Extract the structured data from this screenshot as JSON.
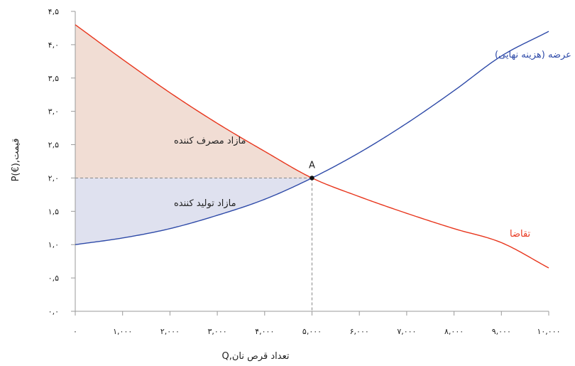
{
  "chart_data": {
    "type": "line",
    "title": "",
    "xlabel": "Q,تعداد قرص نان",
    "ylabel": "P(€),قیمت",
    "xlim": [
      0,
      10000
    ],
    "ylim": [
      0,
      4.5
    ],
    "x_ticks": [
      0,
      1000,
      2000,
      3000,
      4000,
      5000,
      6000,
      7000,
      8000,
      9000,
      10000
    ],
    "x_tick_labels": [
      "۰",
      "۱,۰۰۰",
      "۲,۰۰۰",
      "۳,۰۰۰",
      "۴,۰۰۰",
      "۵,۰۰۰",
      "۶,۰۰۰",
      "۷,۰۰۰",
      "۸,۰۰۰",
      "۹,۰۰۰",
      "۱۰,۰۰۰"
    ],
    "y_ticks": [
      0,
      0.5,
      1,
      1.5,
      2,
      2.5,
      3,
      3.5,
      4,
      4.5
    ],
    "y_tick_labels": [
      "۰,۰",
      "۰,۵",
      "۱,۰",
      "۱,۵",
      "۲,۰",
      "۲,۵",
      "۳,۰",
      "۳,۵",
      "۴,۰",
      "۴,۵"
    ],
    "series": [
      {
        "name": "تقاضا",
        "color": "#e8361d",
        "x": [
          0,
          1000,
          2000,
          3000,
          4000,
          5000,
          6000,
          7000,
          8000,
          9000,
          10000
        ],
        "y": [
          4.3,
          3.78,
          3.28,
          2.82,
          2.4,
          2.0,
          1.72,
          1.47,
          1.24,
          1.03,
          0.65
        ]
      },
      {
        "name": "عرضه (هزینه نهایی)",
        "color": "#2e4aa8",
        "x": [
          0,
          1000,
          2000,
          3000,
          4000,
          5000,
          6000,
          7000,
          8000,
          9000,
          10000
        ],
        "y": [
          1.0,
          1.1,
          1.24,
          1.44,
          1.68,
          2.0,
          2.38,
          2.82,
          3.31,
          3.83,
          4.2
        ]
      }
    ],
    "equilibrium": {
      "label": "A",
      "x": 5000,
      "y": 2.0
    },
    "regions": [
      {
        "label": "مازاد مصرف کننده",
        "color": "#f1ddd4"
      },
      {
        "label": "مازاد تولید کننده",
        "color": "#dfe1ef"
      }
    ],
    "grid": false
  }
}
